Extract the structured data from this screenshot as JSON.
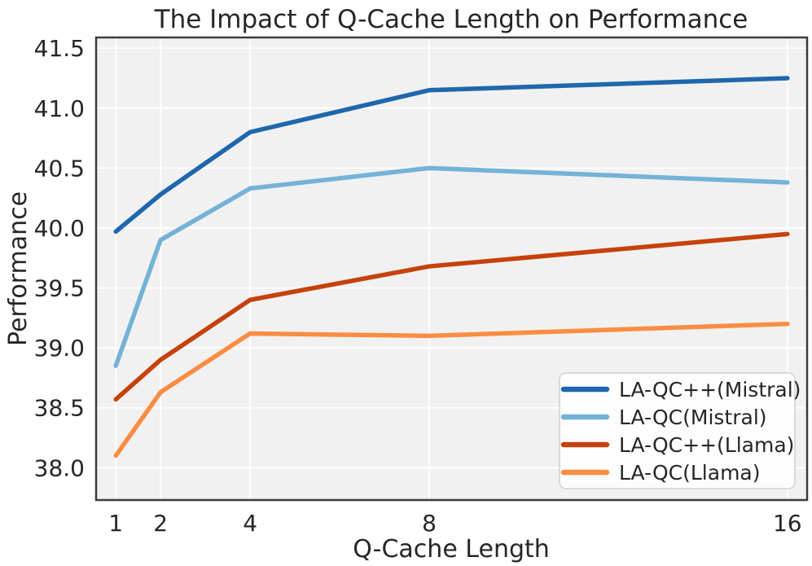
{
  "chart_data": {
    "type": "line",
    "title": "The Impact of Q-Cache Length on Performance",
    "xlabel": "Q-Cache Length",
    "ylabel": "Performance",
    "x": [
      1,
      2,
      4,
      8,
      16
    ],
    "xtick_labels": [
      "1",
      "2",
      "4",
      "8",
      "16"
    ],
    "yticks": [
      38.0,
      38.5,
      39.0,
      39.5,
      40.0,
      40.5,
      41.0,
      41.5
    ],
    "ytick_labels": [
      "38.0",
      "38.5",
      "39.0",
      "39.5",
      "40.0",
      "40.5",
      "41.0",
      "41.5"
    ],
    "xlim": [
      0.56,
      16.44
    ],
    "ylim": [
      37.73,
      41.59
    ],
    "grid": true,
    "legend_position": "lower right",
    "series": [
      {
        "name": "LA-QC++(Mistral)",
        "color": "#1f67ad",
        "values": [
          39.97,
          40.28,
          40.8,
          41.15,
          41.25
        ]
      },
      {
        "name": "LA-QC(Mistral)",
        "color": "#74b2d8",
        "values": [
          38.85,
          39.9,
          40.33,
          40.5,
          40.38
        ]
      },
      {
        "name": "LA-QC++(Llama)",
        "color": "#c5420c",
        "values": [
          38.57,
          38.9,
          39.4,
          39.68,
          39.95
        ]
      },
      {
        "name": "LA-QC(Llama)",
        "color": "#fb8d43",
        "values": [
          38.1,
          38.63,
          39.12,
          39.1,
          39.2
        ]
      }
    ],
    "style": {
      "plot_bg": "#f1f1f1",
      "grid_color": "#ffffff",
      "spine_color": "#3b3b3b",
      "text_color": "#262626",
      "legend_bg": "#ffffff",
      "legend_border": "#d0d0d0"
    }
  }
}
